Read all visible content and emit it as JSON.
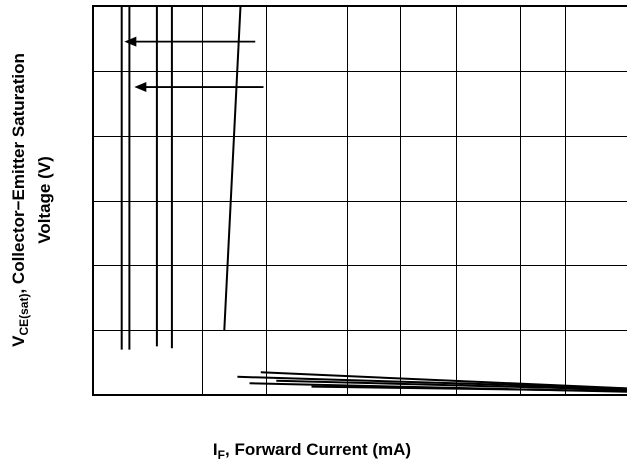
{
  "chart_data": {
    "type": "line",
    "title": "",
    "xlabel": {
      "main": "I",
      "sub": "F",
      "rest": ", Forward Current (mA)"
    },
    "ylabel": {
      "line1_main": "V",
      "line1_sub": "CE(sat)",
      "line1_rest": ", Collector−Emitter Saturation",
      "line2": "Voltage (V)"
    },
    "x_scale": "log",
    "xlim": [
      1,
      30
    ],
    "ylim": [
      0,
      6
    ],
    "grid": true,
    "legend": "none",
    "series": [
      {
        "x": [
          1.2,
          1.2
        ],
        "y": [
          0.7,
          6
        ]
      },
      {
        "x": [
          1.26,
          1.26
        ],
        "y": [
          0.7,
          6
        ]
      },
      {
        "x": [
          1.5,
          1.5
        ],
        "y": [
          0.75,
          6
        ]
      },
      {
        "x": [
          1.65,
          1.65
        ],
        "y": [
          0.72,
          6
        ]
      },
      {
        "x": [
          2.3,
          2.55
        ],
        "y": [
          1.0,
          6
        ]
      },
      {
        "x": [
          2.9,
          30
        ],
        "y": [
          0.35,
          0.1
        ]
      },
      {
        "x": [
          2.5,
          30
        ],
        "y": [
          0.28,
          0.1
        ]
      },
      {
        "x": [
          2.7,
          30
        ],
        "y": [
          0.18,
          0.05
        ]
      },
      {
        "x": [
          3.2,
          30
        ],
        "y": [
          0.22,
          0.08
        ]
      },
      {
        "x": [
          4.0,
          30
        ],
        "y": [
          0.13,
          0.06
        ]
      }
    ],
    "annotations": [
      {
        "type": "arrow",
        "from": [
          2.8,
          5.45
        ],
        "to": [
          1.22,
          5.45
        ]
      },
      {
        "type": "arrow",
        "from": [
          2.95,
          4.75
        ],
        "to": [
          1.3,
          4.75
        ]
      }
    ]
  }
}
